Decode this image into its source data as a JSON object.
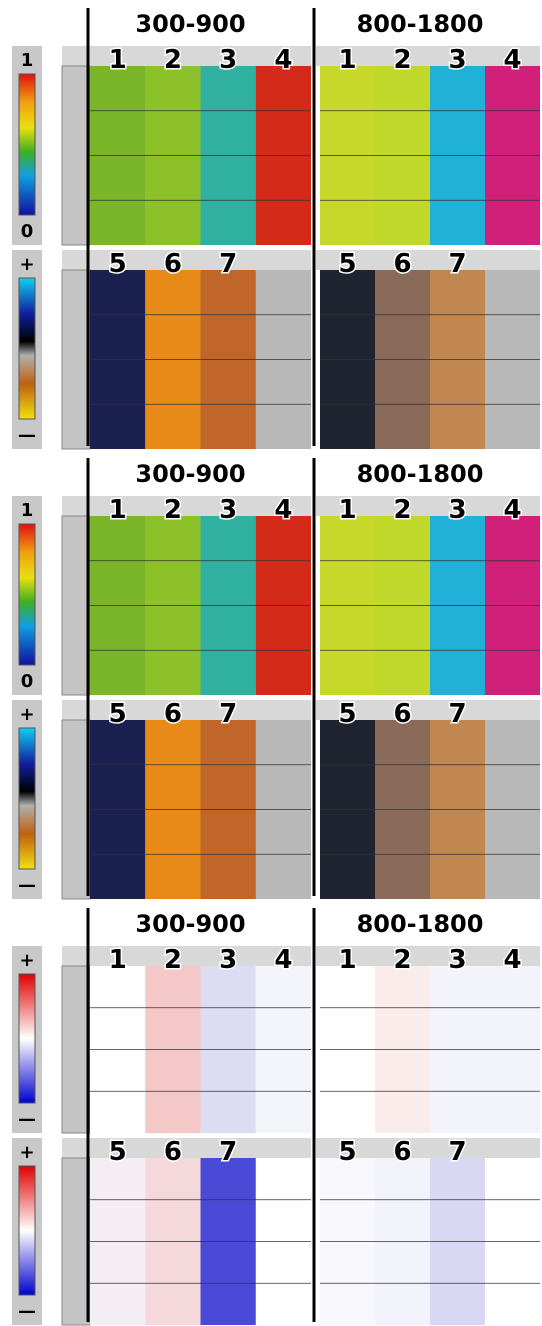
{
  "blocks": [
    {
      "ranges": [
        "300-900",
        "800-1800"
      ],
      "rows": [
        {
          "colorbar": {
            "top": "1",
            "bottom": "0"
          },
          "tracks": [
            "1",
            "2",
            "3",
            "4"
          ]
        },
        {
          "colorbar": {
            "top": "+",
            "bottom": "—"
          },
          "tracks": [
            "5",
            "6",
            "7"
          ]
        }
      ]
    },
    {
      "ranges": [
        "300-900",
        "800-1800"
      ],
      "rows": [
        {
          "colorbar": {
            "top": "1",
            "bottom": "0"
          },
          "tracks": [
            "1",
            "2",
            "3",
            "4"
          ]
        },
        {
          "colorbar": {
            "top": "+",
            "bottom": "—"
          },
          "tracks": [
            "5",
            "6",
            "7"
          ]
        }
      ]
    },
    {
      "ranges": [
        "300-900",
        "800-1800"
      ],
      "rows": [
        {
          "colorbar": {
            "top": "+",
            "bottom": "—"
          },
          "tracks": [
            "1",
            "2",
            "3",
            "4"
          ]
        },
        {
          "colorbar": {
            "top": "+",
            "bottom": "—"
          },
          "tracks": [
            "5",
            "6",
            "7"
          ]
        }
      ]
    }
  ]
}
